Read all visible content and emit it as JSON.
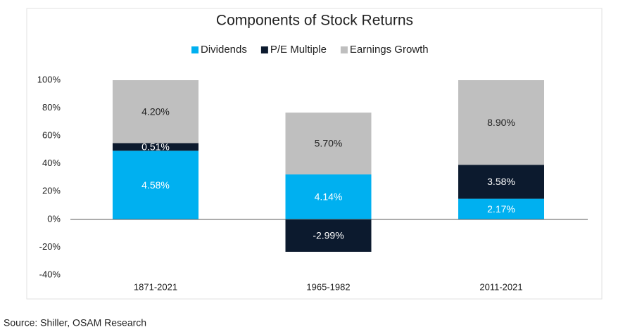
{
  "chart_data": {
    "type": "stacked_bar",
    "title": "Components of Stock Returns",
    "categories": [
      "1871-2021",
      "1965-1982",
      "2011-2021"
    ],
    "series": [
      {
        "name": "Dividends",
        "color": "#00b0f0",
        "label_color": "#ffffff",
        "values": [
          49.3,
          32.3,
          14.8
        ],
        "labels": [
          "4.58%",
          "4.14%",
          "2.17%"
        ]
      },
      {
        "name": "P/E Multiple",
        "color": "#0c1a2e",
        "label_color": "#ffffff",
        "values": [
          5.5,
          -23.3,
          24.4
        ],
        "labels": [
          "0.51%",
          "-2.99%",
          "3.58%"
        ]
      },
      {
        "name": "Earnings Growth",
        "color": "#bfbfbf",
        "label_color": "#222222",
        "values": [
          45.2,
          44.4,
          60.8
        ],
        "labels": [
          "4.20%",
          "5.70%",
          "8.90%"
        ]
      }
    ],
    "ylim": [
      -40,
      100
    ],
    "yticks": [
      {
        "value": -40,
        "label": "-40%"
      },
      {
        "value": -20,
        "label": "-20%"
      },
      {
        "value": 0,
        "label": "0%"
      },
      {
        "value": 20,
        "label": "20%"
      },
      {
        "value": 40,
        "label": "40%"
      },
      {
        "value": 60,
        "label": "60%"
      },
      {
        "value": 80,
        "label": "80%"
      },
      {
        "value": 100,
        "label": "100%"
      }
    ],
    "grid": false,
    "legend": "top",
    "source": "Source: Shiller, OSAM Research"
  }
}
